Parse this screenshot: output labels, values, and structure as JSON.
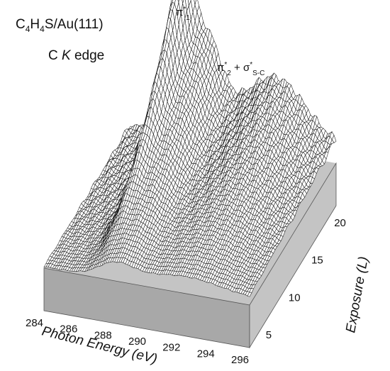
{
  "chart_data": {
    "type": "surface",
    "title_parts": {
      "main": "C",
      "sub1": "4",
      "mid1": "H",
      "sub2": "4",
      "rest": "S/Au(111)"
    },
    "subtitle_parts": {
      "pre": "C ",
      "ital": "K",
      "post": " edge"
    },
    "annotations": [
      {
        "id": "pi1",
        "base": "π",
        "sup": "*",
        "sub": "1"
      },
      {
        "id": "pi2sigma",
        "base1": "π",
        "sup1": "*",
        "sub1": "2",
        "plus": " + ",
        "base2": "σ",
        "sup2": "*",
        "sub2": "S-C"
      }
    ],
    "x_axis": {
      "label": "Photon Energy (eV)",
      "range": [
        284,
        296
      ],
      "ticks": [
        "284",
        "286",
        "288",
        "290",
        "292",
        "294",
        "296"
      ]
    },
    "y_axis": {
      "label": "Exposure (L)",
      "range": [
        3,
        22
      ],
      "ticks": [
        "5",
        "10",
        "15",
        "20"
      ]
    },
    "z_axis": {
      "label": "",
      "range": [
        0,
        1
      ]
    },
    "peaks": [
      {
        "name": "pi1",
        "energy_eV": 287.2,
        "max_intensity": 0.95
      },
      {
        "name": "pi2+sigma",
        "energy_eV": 288.0,
        "max_intensity": 0.55
      },
      {
        "name": "broad",
        "energy_eV": 292.5,
        "max_intensity": 0.35
      }
    ],
    "colors": {
      "mesh": "#1a1a1a",
      "surface": "#ffffff",
      "base_top": "#c4c4c4",
      "base_side": "#a8a8a8"
    }
  }
}
